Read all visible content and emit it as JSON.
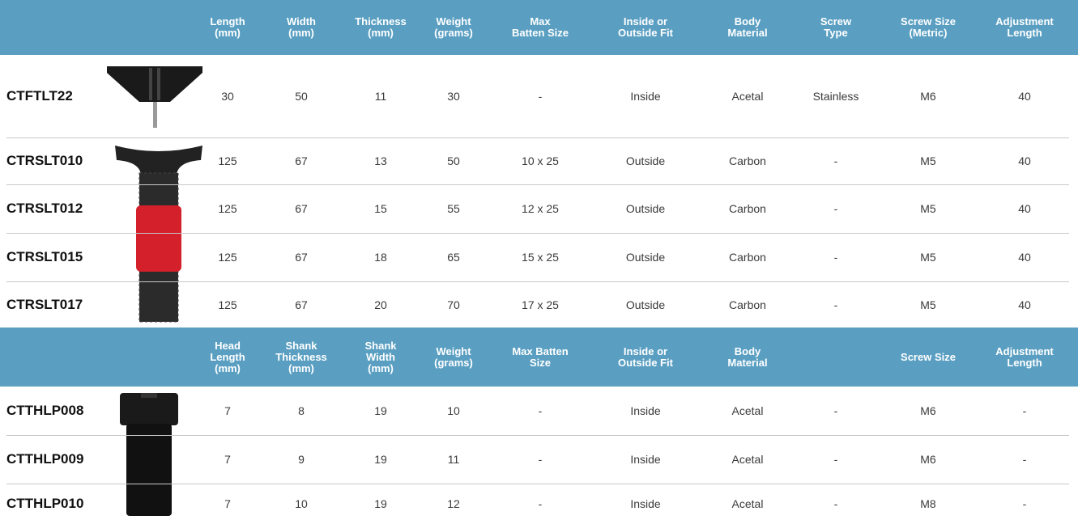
{
  "sections": [
    {
      "headers": [
        [
          "Length",
          "(mm)"
        ],
        [
          "Width",
          "(mm)"
        ],
        [
          "Thickness",
          "(mm)"
        ],
        [
          "Weight",
          "(grams)"
        ],
        [
          "Max",
          "Batten Size"
        ],
        [
          "Inside or",
          "Outside Fit"
        ],
        [
          "Body",
          "Material"
        ],
        [
          "Screw",
          "Type"
        ],
        [
          "Screw Size",
          "(Metric)"
        ],
        [
          "Adjustment",
          "Length"
        ]
      ],
      "rows": [
        {
          "code": "CTFTLT22",
          "cells": [
            "30",
            "50",
            "11",
            "30",
            "-",
            "Inside",
            "Acetal",
            "Stainless",
            "M6",
            "40"
          ]
        },
        {
          "code": "CTRSLT010",
          "cells": [
            "125",
            "67",
            "13",
            "50",
            "10 x 25",
            "Outside",
            "Carbon",
            "-",
            "M5",
            "40"
          ]
        },
        {
          "code": "CTRSLT012",
          "cells": [
            "125",
            "67",
            "15",
            "55",
            "12 x 25",
            "Outside",
            "Carbon",
            "-",
            "M5",
            "40"
          ]
        },
        {
          "code": "CTRSLT015",
          "cells": [
            "125",
            "67",
            "18",
            "65",
            "15 x 25",
            "Outside",
            "Carbon",
            "-",
            "M5",
            "40"
          ]
        },
        {
          "code": "CTRSLT017",
          "cells": [
            "125",
            "67",
            "20",
            "70",
            "17 x 25",
            "Outside",
            "Carbon",
            "-",
            "M5",
            "40"
          ]
        }
      ]
    },
    {
      "headers": [
        [
          "Head",
          "Length",
          "(mm)"
        ],
        [
          "Shank",
          "Thickness",
          "(mm)"
        ],
        [
          "Shank",
          "Width",
          "(mm)"
        ],
        [
          "Weight",
          "(grams)"
        ],
        [
          "Max Batten",
          "Size"
        ],
        [
          "Inside or",
          "Outside Fit"
        ],
        [
          "Body",
          "Material"
        ],
        null,
        [
          "Screw Size"
        ],
        [
          "Adjustment",
          "Length"
        ]
      ],
      "rows": [
        {
          "code": "CTTHLP008",
          "cells": [
            "7",
            "8",
            "19",
            "10",
            "-",
            "Inside",
            "Acetal",
            "-",
            "M6",
            "-"
          ]
        },
        {
          "code": "CTTHLP009",
          "cells": [
            "7",
            "9",
            "19",
            "11",
            "-",
            "Inside",
            "Acetal",
            "-",
            "M6",
            "-"
          ]
        },
        {
          "code": "CTTHLP010",
          "cells": [
            "7",
            "10",
            "19",
            "12",
            "-",
            "Inside",
            "Acetal",
            "-",
            "M8",
            "-"
          ]
        }
      ]
    }
  ]
}
